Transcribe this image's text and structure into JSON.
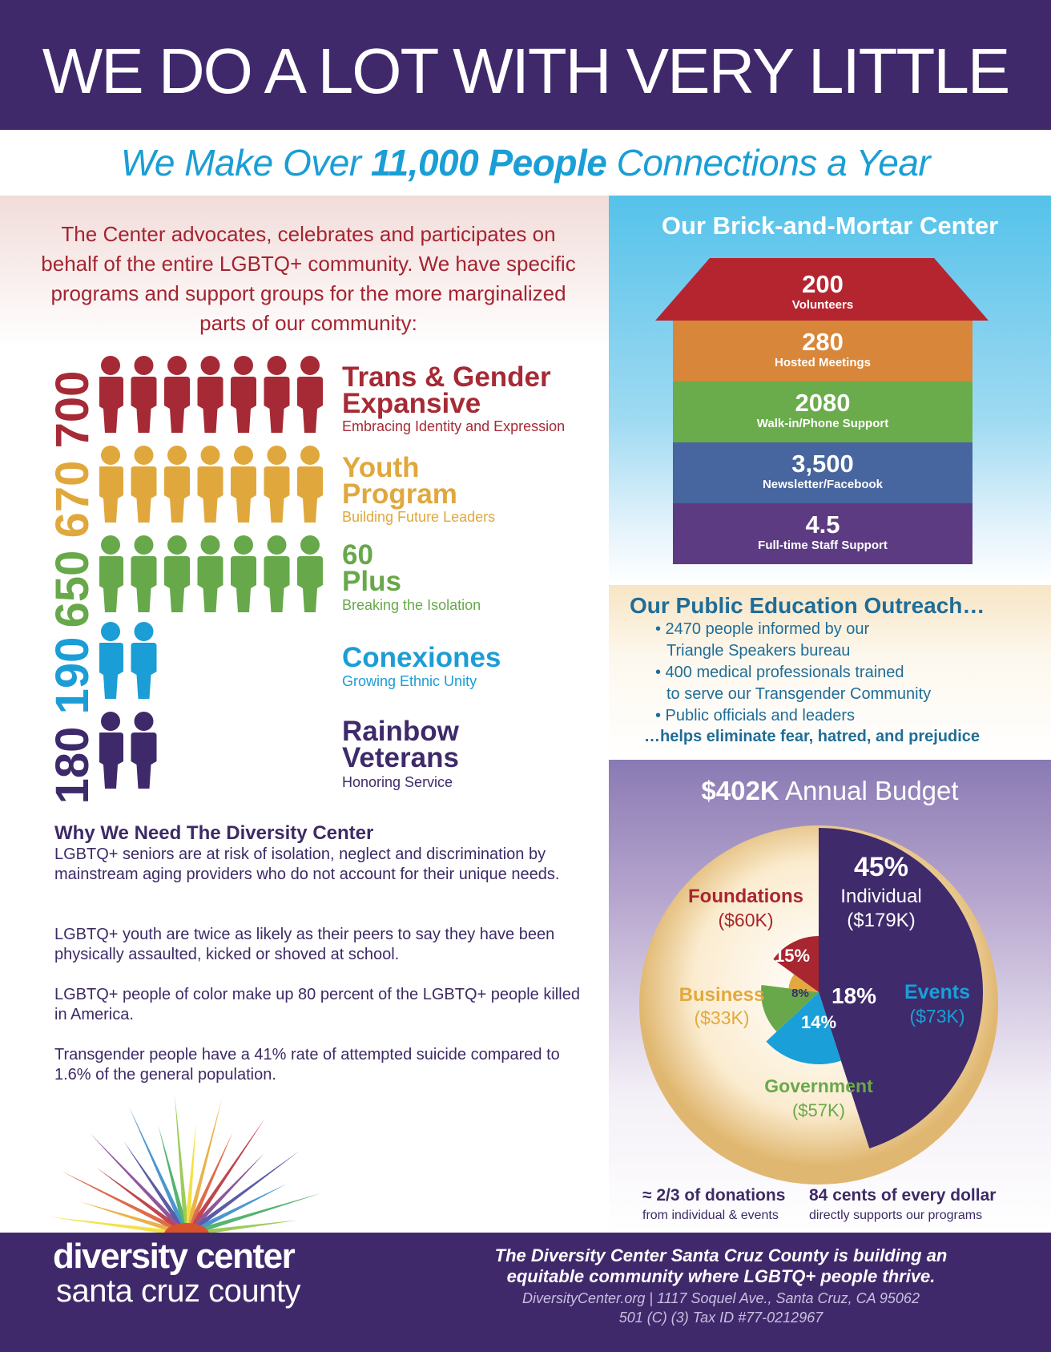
{
  "header": {
    "title": "WE DO A LOT WITH VERY LITTLE"
  },
  "subtitle": {
    "pre": "We Make Over ",
    "bold": "11,000 People",
    "post": " Connections a Year"
  },
  "intro": "The Center advocates, celebrates and participates on behalf of the entire LGBTQ+ community. We have specific programs and support groups for the more marginalized parts of our community:",
  "groups": [
    {
      "count": "700",
      "title1": "Trans & Gender",
      "title2": "Expansive",
      "subtitle": "Embracing Identity and Expression",
      "color": "#a62a35",
      "icons": 7
    },
    {
      "count": "670",
      "title1": "Youth",
      "title2": "Program",
      "subtitle": "Building Future Leaders",
      "color": "#e0a83c",
      "icons": 7
    },
    {
      "count": "650",
      "title1": "60",
      "title2": "Plus",
      "subtitle": "Breaking the Isolation",
      "color": "#67a84a",
      "icons": 7
    },
    {
      "count": "190",
      "title1": "Conexiones",
      "title2": "",
      "subtitle": "Growing Ethnic Unity",
      "color": "#1b9dd6",
      "icons": 2
    },
    {
      "count": "180",
      "title1": "Rainbow",
      "title2": "Veterans",
      "subtitle": "Honoring Service",
      "color": "#3e2a6a",
      "icons": 2
    }
  ],
  "why": {
    "title": "Why We Need The Diversity Center",
    "paragraphs": [
      "LGBTQ+ seniors are at risk of isolation, neglect and discrimination by mainstream aging providers who do not account for their unique needs.",
      "LGBTQ+ youth are twice as likely as their peers to say they have been physically assaulted, kicked or shoved at school.",
      "LGBTQ+ people of color make up 80 percent of the LGBTQ+ people killed in America.",
      "Transgender people have a 41% rate of attempted suicide compared to 1.6% of the general population."
    ]
  },
  "center": {
    "title": "Our Brick-and-Mortar Center",
    "floors": [
      {
        "num": "200",
        "label": "Volunteers",
        "color": "#b5252f"
      },
      {
        "num": "280",
        "label": "Hosted Meetings",
        "color": "#d8863a"
      },
      {
        "num": "2080",
        "label": "Walk-in/Phone Support",
        "color": "#6aac4b"
      },
      {
        "num": "3,500",
        "label": "Newsletter/Facebook",
        "color": "#47659e"
      },
      {
        "num": "4.5",
        "label": "Full-time Staff Support",
        "color": "#5d3b82"
      }
    ]
  },
  "outreach": {
    "title": "Our Public Education Outreach…",
    "lines": [
      "• 2470 people informed by our",
      "  Triangle Speakers bureau",
      "• 400 medical professionals trained",
      "  to serve our Transgender Community",
      "• Public officials and leaders"
    ],
    "footer": "…helps eliminate fear, hatred, and prejudice"
  },
  "budget": {
    "title_bold": "$402K",
    "title_rest": " Annual Budget",
    "stat1_bold": "≈ 2/3 of donations",
    "stat1_sub": "from individual & events",
    "stat2_bold": "84 cents of every dollar",
    "stat2_sub": "directly supports our programs"
  },
  "chart_data": {
    "type": "pie",
    "title": "$402K Annual Budget",
    "slices": [
      {
        "name": "Individual",
        "amount": "($179K)",
        "pct": 45,
        "pct_label": "45%",
        "color": "#3f2a6b"
      },
      {
        "name": "Events",
        "amount": "($73K)",
        "pct": 18,
        "pct_label": "18%",
        "color": "#1a9fd9"
      },
      {
        "name": "Government",
        "amount": "($57K)",
        "pct": 14,
        "pct_label": "14%",
        "color": "#69a84a"
      },
      {
        "name": "Business",
        "amount": "($33K)",
        "pct": 8,
        "pct_label": "8%",
        "color": "#e2a940"
      },
      {
        "name": "Foundations",
        "amount": "($60K)",
        "pct": 15,
        "pct_label": "15%",
        "color": "#a8262f"
      }
    ]
  },
  "footer": {
    "logo_line1": "diversity center",
    "logo_line2": "santa cruz county",
    "tagline1": "The Diversity Center Santa Cruz County is building an",
    "tagline2": "equitable community where LGBTQ+ people thrive.",
    "contact": "DiversityCenter.org   |  1117 Soquel Ave., Santa Cruz, CA 95062",
    "taxid": "501 (C) (3) Tax ID #77-0212967"
  }
}
